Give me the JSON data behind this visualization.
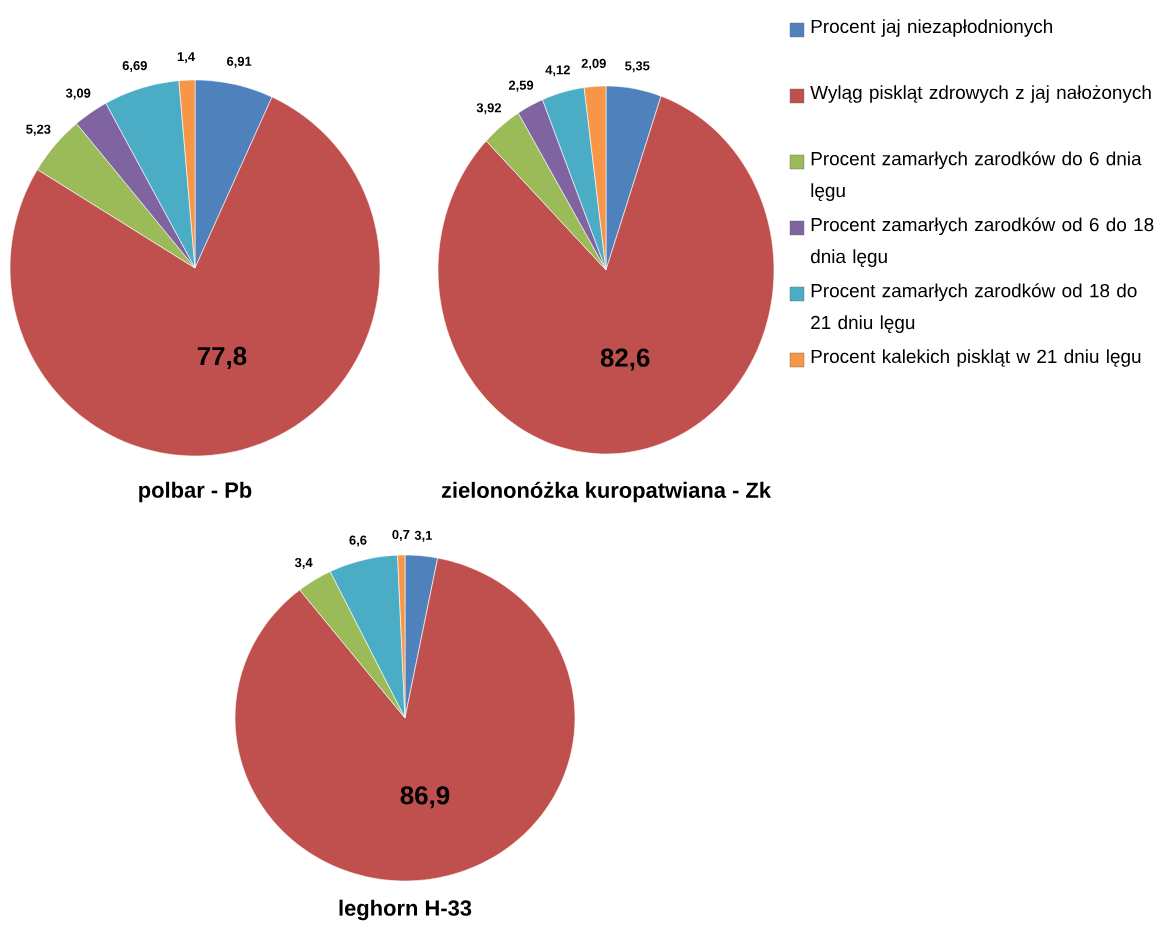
{
  "chart_data": [
    {
      "type": "pie",
      "title": "polbar - Pb",
      "categories": [
        null,
        null,
        null,
        null,
        null,
        null
      ],
      "values": [
        6.91,
        77.8,
        5.23,
        3.09,
        6.69,
        1.4
      ],
      "value_labels": [
        "6,91",
        "77,8",
        "5,23",
        "3,09",
        "6,69",
        "1,4"
      ],
      "colors": [
        "#4f81bd",
        "#c0504d",
        "#9bbb59",
        "#8064a2",
        "#4bacc6",
        "#f79646"
      ]
    },
    {
      "type": "pie",
      "title": "zielononóżka kuropatwiana  - Zk",
      "categories": [
        "Procent jaj niezapłodnionych",
        "Wyląg piskląt zdrowych z jaj nałożonych",
        "Procent zamarłych zarodków do 6 dnia lęgu",
        "Procent zamarłych zarodków od 6 do 18 dnia lęgu",
        "Procent zamarłych zarodków od 18 do 21 dniu lęgu",
        "Procent kalekich piskląt w 21 dniu lęgu"
      ],
      "values": [
        5.35,
        82.6,
        3.92,
        2.59,
        4.12,
        2.09
      ],
      "value_labels": [
        "5,35",
        "82,6",
        "3,92",
        "2,59",
        "4,12",
        "2,09"
      ],
      "colors": [
        "#4f81bd",
        "#c0504d",
        "#9bbb59",
        "#8064a2",
        "#4bacc6",
        "#f79646"
      ],
      "legend": "right"
    },
    {
      "type": "pie",
      "title": "leghorn H-33",
      "categories": [
        null,
        null,
        null,
        null,
        null,
        null
      ],
      "values": [
        3.1,
        86.9,
        3.4,
        null,
        6.6,
        0.7
      ],
      "value_labels": [
        "3,1",
        "86,9",
        "3,4",
        null,
        "6,6",
        "0,7"
      ],
      "colors": [
        "#4f81bd",
        "#c0504d",
        "#9bbb59",
        "#8064a2",
        "#4bacc6",
        "#f79646"
      ]
    }
  ]
}
